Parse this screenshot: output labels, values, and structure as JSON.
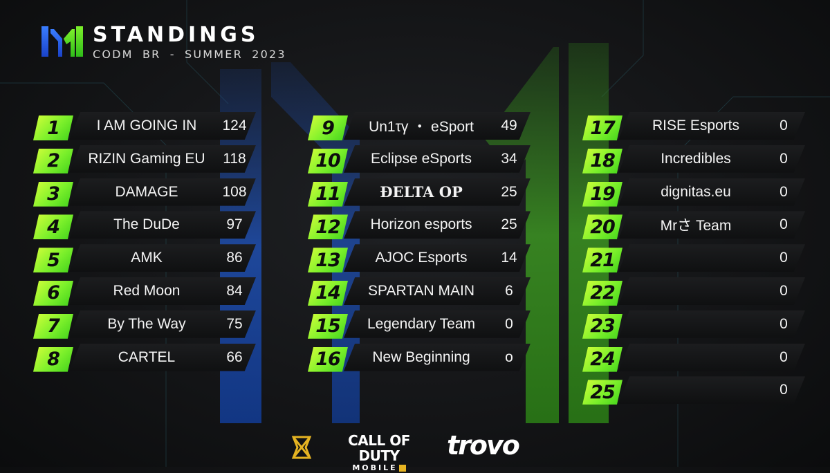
{
  "header": {
    "title": "STANDINGS",
    "subtitle": "CODM BR - SUMMER 2023"
  },
  "colors": {
    "accent_green": "#7cf02b",
    "accent_lime": "#d6ff3a",
    "brand_blue": "#1f5bd6",
    "background": "#141517",
    "plate": "#151617",
    "gold": "#e6b422"
  },
  "standings": [
    {
      "rank": "1",
      "team": "I AM GOING IN",
      "score": "124"
    },
    {
      "rank": "2",
      "team": "RIZIN Gaming EU",
      "score": "118"
    },
    {
      "rank": "3",
      "team": "DAMAGE",
      "score": "108"
    },
    {
      "rank": "4",
      "team": "The DuDe",
      "score": "97"
    },
    {
      "rank": "5",
      "team": "AMK",
      "score": "86"
    },
    {
      "rank": "6",
      "team": "Red Moon",
      "score": "84"
    },
    {
      "rank": "7",
      "team": "By The Way",
      "score": "75"
    },
    {
      "rank": "8",
      "team": "CARTEL",
      "score": "66"
    },
    {
      "rank": "9",
      "team": "Un1τγ ・ eSport",
      "score": "49"
    },
    {
      "rank": "10",
      "team": "Eclipse eSports",
      "score": "34"
    },
    {
      "rank": "11",
      "team": "ĐELTA OP",
      "score": "25"
    },
    {
      "rank": "12",
      "team": "Horizon esports",
      "score": "25"
    },
    {
      "rank": "13",
      "team": "AJOC Esports",
      "score": "14"
    },
    {
      "rank": "14",
      "team": "SPARTAN MAIN",
      "score": "6"
    },
    {
      "rank": "15",
      "team": "Legendary Team",
      "score": "0"
    },
    {
      "rank": "16",
      "team": "New Beginning",
      "score": "o"
    },
    {
      "rank": "17",
      "team": "RISE Esports",
      "score": "0"
    },
    {
      "rank": "18",
      "team": "Incredibles",
      "score": "0"
    },
    {
      "rank": "19",
      "team": "dignitas.eu",
      "score": "0"
    },
    {
      "rank": "20",
      "team": "Mrさ Team",
      "score": "0"
    },
    {
      "rank": "21",
      "team": "",
      "score": "0"
    },
    {
      "rank": "22",
      "team": "",
      "score": "0"
    },
    {
      "rank": "23",
      "team": "",
      "score": "0"
    },
    {
      "rank": "24",
      "team": "",
      "score": "0"
    },
    {
      "rank": "25",
      "team": "",
      "score": "0"
    }
  ],
  "footer": {
    "sponsor_icon": "gold-m-emblem-icon",
    "cod_top": "CALL OF DUTY",
    "cod_bottom": "MOBILE",
    "trovo": "trovo"
  }
}
